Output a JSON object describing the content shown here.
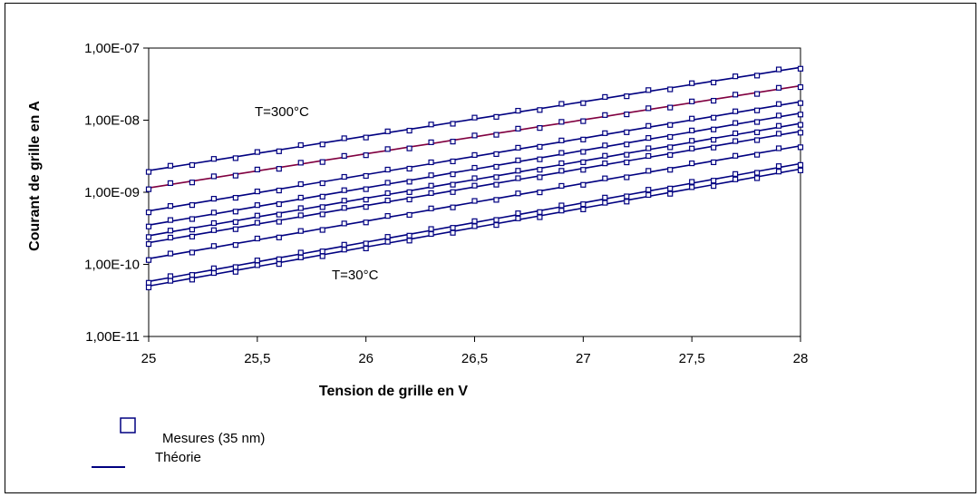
{
  "chart_data": {
    "type": "line",
    "ylog": true,
    "xlim": [
      25,
      28
    ],
    "ylim": [
      1e-11,
      1e-07
    ],
    "xlabel": "Tension de grille en V",
    "ylabel": "Courant de grille en A",
    "x_ticks": [
      25,
      25.5,
      26,
      26.5,
      27,
      27.5,
      28
    ],
    "x_tick_labels": [
      "25",
      "25,5",
      "26",
      "26,5",
      "27",
      "27,5",
      "28"
    ],
    "y_ticks": [
      1e-07,
      1e-08,
      1e-09,
      1e-10,
      1e-11
    ],
    "y_tick_labels": [
      "1,00E-07",
      "1,00E-08",
      "1,00E-09",
      "1,00E-10",
      "1,00E-11"
    ],
    "grid": false,
    "annotations": [
      {
        "text": "T=300°C"
      },
      {
        "text": "T=30°C"
      }
    ],
    "legend": {
      "placement": "bottom-left",
      "entries": [
        {
          "label": "Mesures (35 nm)",
          "marker": "square"
        },
        {
          "label": "Théorie",
          "marker": "line"
        }
      ]
    },
    "colors": {
      "theory": "#000080",
      "measure": "#000080",
      "highlight_theory": "#800040"
    },
    "x": [
      25,
      25.1,
      25.2,
      25.3,
      25.4,
      25.5,
      25.6,
      25.7,
      25.8,
      25.9,
      26,
      26.1,
      26.2,
      26.3,
      26.4,
      26.5,
      26.6,
      26.7,
      26.8,
      26.9,
      27,
      27.1,
      27.2,
      27.3,
      27.4,
      27.5,
      27.6,
      27.7,
      27.8,
      27.9,
      28
    ],
    "series": [
      {
        "start": 2e-09,
        "end": 5.4e-08,
        "color": "#000080"
      },
      {
        "start": 1.15e-09,
        "end": 3e-08,
        "color": "#800040"
      },
      {
        "start": 5.5e-10,
        "end": 1.8e-08,
        "color": "#000080"
      },
      {
        "start": 3.5e-10,
        "end": 1.25e-08,
        "color": "#000080"
      },
      {
        "start": 2.5e-10,
        "end": 9e-09,
        "color": "#000080"
      },
      {
        "start": 2e-10,
        "end": 7e-09,
        "color": "#000080"
      },
      {
        "start": 1.2e-10,
        "end": 4.4e-09,
        "color": "#000080"
      },
      {
        "start": 5.8e-11,
        "end": 2.5e-09,
        "color": "#000080"
      },
      {
        "start": 5e-11,
        "end": 2.1e-09,
        "color": "#000080"
      }
    ]
  }
}
